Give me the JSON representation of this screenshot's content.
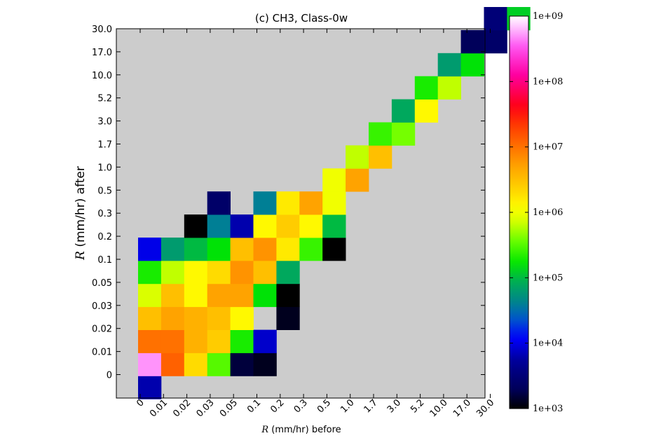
{
  "chart_data": {
    "type": "heatmap",
    "title": "(c) CH3, Class-0w",
    "xlabel": {
      "symbol": "R",
      "text": " (mm/hr) before"
    },
    "ylabel": {
      "symbol": "R",
      "text": " (mm/hr) after"
    },
    "x_categories": [
      "0",
      "0.01",
      "0.02",
      "0.03",
      "0.05",
      "0.1",
      "0.2",
      "0.3",
      "0.5",
      "1.0",
      "1.7",
      "3.0",
      "5.2",
      "10.0",
      "17.0",
      "30.0"
    ],
    "y_tick_labels": [
      "30.0",
      "17.0",
      "10.0",
      "5.2",
      "3.0",
      "1.7",
      "1.0",
      "0.5",
      "0.3",
      "0.2",
      "0.1",
      "0.05",
      "0.03",
      "0.02",
      "0.01",
      "0"
    ],
    "value_scale": "log10",
    "value_range": [
      3,
      9
    ],
    "background_color": "#cccccc",
    "colormap": "gist_ncar",
    "colorbar_ticks": [
      "1e+09",
      "1e+08",
      "1e+07",
      "1e+06",
      "1e+05",
      "1e+04",
      "1e+03"
    ],
    "colorbar_tick_exponents": [
      9,
      8,
      7,
      6,
      5,
      4,
      3
    ],
    "cells_log10": [
      [
        0,
        -1,
        3.8
      ],
      [
        0,
        0,
        8.7
      ],
      [
        1,
        0,
        7.1
      ],
      [
        2,
        0,
        6.3
      ],
      [
        3,
        0,
        5.5
      ],
      [
        4,
        0,
        3.2
      ],
      [
        5,
        0,
        3.1
      ],
      [
        0,
        1,
        7.0
      ],
      [
        1,
        1,
        7.0
      ],
      [
        2,
        1,
        6.6
      ],
      [
        3,
        1,
        6.4
      ],
      [
        4,
        1,
        5.3
      ],
      [
        5,
        1,
        3.9
      ],
      [
        0,
        2,
        6.5
      ],
      [
        1,
        2,
        6.7
      ],
      [
        2,
        2,
        6.6
      ],
      [
        3,
        2,
        6.5
      ],
      [
        4,
        2,
        6.1
      ],
      [
        6,
        2,
        3.1
      ],
      [
        0,
        3,
        5.9
      ],
      [
        1,
        3,
        6.5
      ],
      [
        2,
        3,
        6.1
      ],
      [
        3,
        3,
        6.7
      ],
      [
        4,
        3,
        6.7
      ],
      [
        5,
        3,
        5.2
      ],
      [
        6,
        3,
        3.0
      ],
      [
        0,
        4,
        5.3
      ],
      [
        1,
        4,
        5.8
      ],
      [
        2,
        4,
        6.1
      ],
      [
        3,
        4,
        6.3
      ],
      [
        4,
        4,
        6.8
      ],
      [
        5,
        4,
        6.5
      ],
      [
        6,
        4,
        4.9
      ],
      [
        0,
        5,
        4.0
      ],
      [
        1,
        5,
        4.8
      ],
      [
        2,
        5,
        5.0
      ],
      [
        3,
        5,
        5.2
      ],
      [
        4,
        5,
        6.5
      ],
      [
        5,
        5,
        6.8
      ],
      [
        6,
        5,
        6.2
      ],
      [
        7,
        5,
        5.4
      ],
      [
        8,
        5,
        3.0
      ],
      [
        2,
        6,
        3.0
      ],
      [
        3,
        6,
        4.6
      ],
      [
        4,
        6,
        3.8
      ],
      [
        5,
        6,
        6.1
      ],
      [
        6,
        6,
        6.4
      ],
      [
        7,
        6,
        6.1
      ],
      [
        8,
        6,
        5.0
      ],
      [
        3,
        7,
        3.4
      ],
      [
        5,
        7,
        4.6
      ],
      [
        6,
        7,
        6.2
      ],
      [
        7,
        7,
        6.7
      ],
      [
        8,
        7,
        6.0
      ],
      [
        8,
        8,
        6.0
      ],
      [
        9,
        8,
        6.7
      ],
      [
        9,
        9,
        5.8
      ],
      [
        10,
        9,
        6.5
      ],
      [
        10,
        10,
        5.4
      ],
      [
        11,
        10,
        5.6
      ],
      [
        11,
        11,
        4.9
      ],
      [
        12,
        11,
        6.1
      ],
      [
        12,
        12,
        5.3
      ],
      [
        13,
        12,
        5.8
      ],
      [
        13,
        13,
        4.8
      ],
      [
        14,
        13,
        5.2
      ],
      [
        14,
        14,
        3.3
      ],
      [
        15,
        14,
        3.4
      ],
      [
        15,
        15,
        3.5
      ],
      [
        16,
        15,
        5.1
      ]
    ]
  }
}
